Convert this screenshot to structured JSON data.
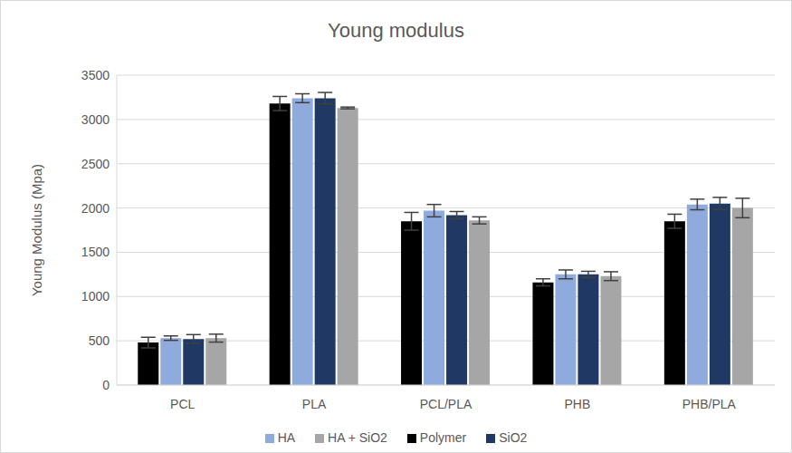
{
  "chart_data": {
    "type": "bar",
    "title": "Young modulus",
    "y_label": "Young Modulus (Mpa)",
    "categories": [
      "PCL",
      "PLA",
      "PCL/PLA",
      "PHB",
      "PHB/PLA"
    ],
    "series": [
      {
        "name": "Polymer",
        "color": "#000000",
        "values": [
          480,
          3180,
          1850,
          1160,
          1850
        ],
        "errors": [
          60,
          80,
          100,
          40,
          80
        ]
      },
      {
        "name": "HA",
        "color": "#8faadc",
        "values": [
          530,
          3240,
          1970,
          1250,
          2040
        ],
        "errors": [
          25,
          50,
          70,
          50,
          60
        ]
      },
      {
        "name": "SiO2",
        "color": "#203864",
        "values": [
          520,
          3240,
          1920,
          1250,
          2050
        ],
        "errors": [
          50,
          65,
          40,
          35,
          70
        ]
      },
      {
        "name": "HA + SiO2",
        "color": "#a6a6a6",
        "values": [
          530,
          3130,
          1860,
          1230,
          2000
        ],
        "errors": [
          45,
          10,
          40,
          50,
          110
        ]
      }
    ],
    "ylim": [
      0,
      3500
    ],
    "yticks": [
      0,
      500,
      1000,
      1500,
      2000,
      2500,
      3000,
      3500
    ],
    "grid": true,
    "legend": "bottom"
  }
}
